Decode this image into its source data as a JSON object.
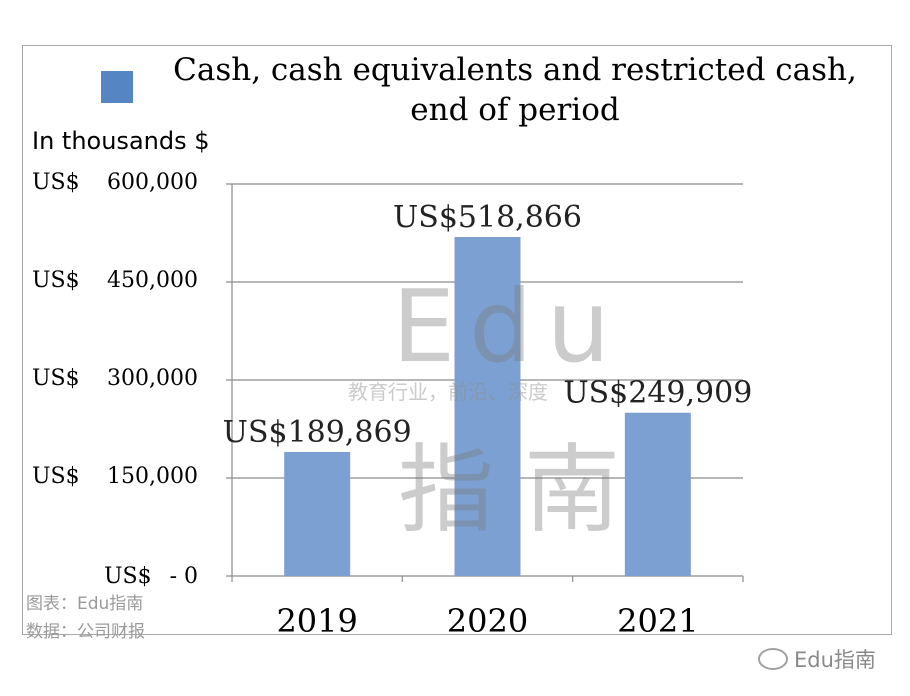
{
  "chart_data": {
    "type": "bar",
    "title": "Cash, cash equivalents and restricted cash, end of period",
    "legend": [
      "Cash, cash equivalents and restricted cash, end of period"
    ],
    "unit_label": "In thousands $",
    "categories": [
      "2019",
      "2020",
      "2021"
    ],
    "values": [
      189869,
      518866,
      249909
    ],
    "data_labels": [
      "US$189,869",
      "US$518,866",
      "US$249,909"
    ],
    "ylim": [
      0,
      600000
    ],
    "yticks": [
      {
        "currency": "US$",
        "value": "600,000"
      },
      {
        "currency": "US$",
        "value": "450,000"
      },
      {
        "currency": "US$",
        "value": "300,000"
      },
      {
        "currency": "US$",
        "value": "150,000"
      },
      {
        "currency": "US$",
        "value": "- 0"
      }
    ],
    "tick_values": [
      600000,
      450000,
      300000,
      150000,
      0
    ],
    "grid": true,
    "legend_position": "top-left",
    "bar_color": "#7da0d2"
  },
  "notes": {
    "chart_source": "图表：Edu指南",
    "data_source": "数据：公司财报"
  },
  "watermark": {
    "brand": "Edu",
    "tagline": "教育行业，前沿、深度",
    "zh": "指南"
  },
  "footer": {
    "account": "Edu指南",
    "icon": "wechat-icon"
  }
}
